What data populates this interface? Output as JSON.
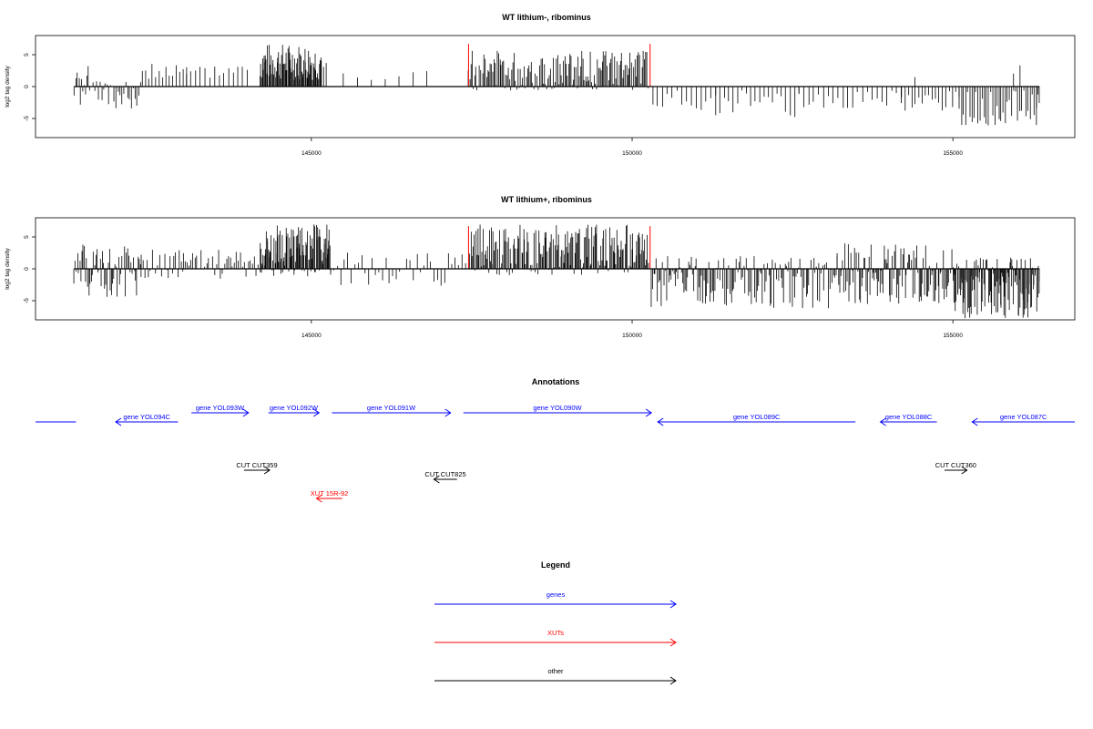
{
  "chart_data": [
    {
      "type": "bar",
      "title": "WT lithium-, ribominus",
      "ylabel": "log2 tag density",
      "xlabel": "",
      "x_ticks": [
        145000,
        150000,
        155000
      ],
      "y_ticks": [
        -5,
        0,
        5
      ],
      "xlim": [
        140700,
        156900
      ],
      "ylim": [
        -8,
        8
      ],
      "axis_line": true,
      "highlight_color": "#ff0000",
      "highlight_positions": [
        147450,
        150280
      ],
      "highlight_height": 6.7,
      "bar_color": "#000000",
      "series": [
        {
          "segments": [
            {
              "start": 141300,
              "end": 141380,
              "n": 4,
              "min": -3.6,
              "max": 2.8,
              "seed": 1
            },
            {
              "start": 141400,
              "end": 141540,
              "n": 8,
              "min": -3.8,
              "max": 3.2,
              "seed": 2
            },
            {
              "start": 141600,
              "end": 141950,
              "n": 14,
              "min": -3.9,
              "max": 1.0,
              "seed": 3
            },
            {
              "start": 141960,
              "end": 142340,
              "n": 14,
              "min": -3.6,
              "max": 1.0,
              "seed": 4
            },
            {
              "start": 142360,
              "end": 143050,
              "n": 14,
              "min": 1.2,
              "max": 3.6,
              "seed": 5
            },
            {
              "start": 143050,
              "end": 144000,
              "n": 14,
              "min": 1.2,
              "max": 3.6,
              "seed": 6
            },
            {
              "start": 144200,
              "end": 145150,
              "n": 80,
              "min": 1.0,
              "max": 6.8,
              "seed": 7
            },
            {
              "start": 145150,
              "end": 145230,
              "n": 3,
              "min": 2.0,
              "max": 4.8,
              "seed": 8
            },
            {
              "start": 145500,
              "end": 146800,
              "n": 7,
              "min": 0.8,
              "max": 2.6,
              "seed": 9
            },
            {
              "start": 147450,
              "end": 150250,
              "n": 150,
              "min": -0.6,
              "max": 5.6,
              "seed": 10
            },
            {
              "start": 150320,
              "end": 151300,
              "n": 14,
              "min": -3.8,
              "max": -0.5,
              "seed": 11
            },
            {
              "start": 151300,
              "end": 152600,
              "n": 20,
              "min": -4.9,
              "max": -0.6,
              "seed": 12
            },
            {
              "start": 152600,
              "end": 154200,
              "n": 22,
              "min": -3.6,
              "max": -0.6,
              "seed": 13
            },
            {
              "start": 154200,
              "end": 155100,
              "n": 18,
              "min": -4.0,
              "max": -0.6,
              "seed": 14
            },
            {
              "start": 155100,
              "end": 156300,
              "n": 38,
              "min": -6.1,
              "max": -0.6,
              "seed": 15
            },
            {
              "start": 155950,
              "end": 156050,
              "n": 2,
              "min": 1.5,
              "max": 3.4,
              "seed": 16
            },
            {
              "start": 156300,
              "end": 156350,
              "n": 3,
              "min": -3.5,
              "max": -1.0,
              "seed": 17
            },
            {
              "start": 154390,
              "end": 154420,
              "n": 1,
              "min": 1.4,
              "max": 1.5,
              "seed": 18
            }
          ]
        }
      ]
    },
    {
      "type": "bar",
      "title": "WT lithium+, ribominus",
      "ylabel": "log2 tag density",
      "xlabel": "",
      "x_ticks": [
        145000,
        150000,
        155000
      ],
      "y_ticks": [
        -5,
        0,
        5
      ],
      "xlim": [
        140700,
        156900
      ],
      "ylim": [
        -8,
        8
      ],
      "axis_line": true,
      "highlight_color": "#ff0000",
      "highlight_positions": [
        147450,
        150280
      ],
      "highlight_height": 6.7,
      "bar_color": "#000000",
      "series": [
        {
          "segments": [
            {
              "start": 141300,
              "end": 142350,
              "n": 60,
              "min": -4.4,
              "max": 3.8,
              "seed": 21
            },
            {
              "start": 142350,
              "end": 143000,
              "n": 24,
              "min": -1.5,
              "max": 3.0,
              "seed": 22
            },
            {
              "start": 143000,
              "end": 144200,
              "n": 40,
              "min": -1.6,
              "max": 3.2,
              "seed": 23
            },
            {
              "start": 144200,
              "end": 145300,
              "n": 110,
              "min": -1.2,
              "max": 7.0,
              "seed": 24
            },
            {
              "start": 145300,
              "end": 147400,
              "n": 40,
              "min": -2.8,
              "max": 2.6,
              "seed": 25
            },
            {
              "start": 147450,
              "end": 150250,
              "n": 190,
              "min": -1.0,
              "max": 7.0,
              "seed": 26
            },
            {
              "start": 150300,
              "end": 153200,
              "n": 150,
              "min": -6.2,
              "max": 2.0,
              "seed": 27
            },
            {
              "start": 153200,
              "end": 155000,
              "n": 110,
              "min": -5.6,
              "max": 4.2,
              "seed": 28
            },
            {
              "start": 155000,
              "end": 156350,
              "n": 130,
              "min": -7.8,
              "max": 1.8,
              "seed": 29
            }
          ]
        }
      ]
    }
  ],
  "annotations": {
    "title": "Annotations",
    "genes_color": "#0000ff",
    "xuts_color": "#ff0000",
    "other_color": "#000000",
    "genes": [
      {
        "label": "",
        "start": 140700,
        "end": 141330,
        "dir": "none",
        "row": 2
      },
      {
        "label": "gene YOL094C",
        "start": 141950,
        "end": 142920,
        "dir": "left",
        "row": 2
      },
      {
        "label": "gene YOL093W",
        "start": 143130,
        "end": 144020,
        "dir": "right",
        "row": 1
      },
      {
        "label": "gene YOL092W",
        "start": 144330,
        "end": 145120,
        "dir": "right",
        "row": 1
      },
      {
        "label": "gene YOL091W",
        "start": 145320,
        "end": 147170,
        "dir": "right",
        "row": 1
      },
      {
        "label": "gene YOL090W",
        "start": 147370,
        "end": 150300,
        "dir": "right",
        "row": 1
      },
      {
        "label": "gene YOL089C",
        "start": 150400,
        "end": 153480,
        "dir": "left",
        "row": 2
      },
      {
        "label": "gene YOL088C",
        "start": 153870,
        "end": 154750,
        "dir": "left",
        "row": 2
      },
      {
        "label": "gene YOL087C",
        "start": 155300,
        "end": 156900,
        "dir": "left",
        "row": 2
      }
    ],
    "others": [
      {
        "label": "CUT CUT359",
        "start": 143950,
        "end": 144350,
        "dir": "right",
        "row": 3
      },
      {
        "label": "CUT CUT825",
        "start": 146910,
        "end": 147270,
        "dir": "left",
        "row": 4
      },
      {
        "label": "CUT CUT360",
        "start": 154870,
        "end": 155220,
        "dir": "right",
        "row": 3
      }
    ],
    "xuts": [
      {
        "label": "XUT 15R-92",
        "start": 145080,
        "end": 145480,
        "dir": "left",
        "row": 5
      }
    ]
  },
  "legend": {
    "title": "Legend",
    "items": [
      {
        "label": "genes",
        "color": "#0000ff"
      },
      {
        "label": "XUTs",
        "color": "#ff0000"
      },
      {
        "label": "other",
        "color": "#000000"
      }
    ]
  }
}
